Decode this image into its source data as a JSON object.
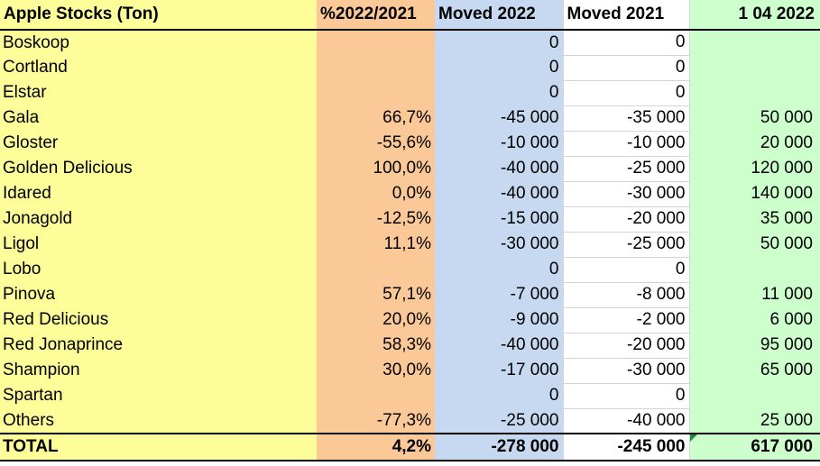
{
  "sheet": {
    "headers": {
      "name": "Apple Stocks (Ton)",
      "pct": "%2022/2021",
      "moved_2022": "Moved 2022",
      "moved_2021": "Moved 2021",
      "stock": "1 04 2022"
    },
    "rows": [
      {
        "name": "Boskoop",
        "pct": "",
        "moved_2022": "0",
        "moved_2021": "0",
        "stock": ""
      },
      {
        "name": "Cortland",
        "pct": "",
        "moved_2022": "0",
        "moved_2021": "0",
        "stock": ""
      },
      {
        "name": "Elstar",
        "pct": "",
        "moved_2022": "0",
        "moved_2021": "0",
        "stock": ""
      },
      {
        "name": "Gala",
        "pct": "66,7%",
        "moved_2022": "-45 000",
        "moved_2021": "-35 000",
        "stock": "50 000"
      },
      {
        "name": "Gloster",
        "pct": "-55,6%",
        "moved_2022": "-10 000",
        "moved_2021": "-10 000",
        "stock": "20 000"
      },
      {
        "name": "Golden Delicious",
        "pct": "100,0%",
        "moved_2022": "-40 000",
        "moved_2021": "-25 000",
        "stock": "120 000"
      },
      {
        "name": "Idared",
        "pct": "0,0%",
        "moved_2022": "-40 000",
        "moved_2021": "-30 000",
        "stock": "140 000"
      },
      {
        "name": "Jonagold",
        "pct": "-12,5%",
        "moved_2022": "-15 000",
        "moved_2021": "-20 000",
        "stock": "35 000"
      },
      {
        "name": "Ligol",
        "pct": "11,1%",
        "moved_2022": "-30 000",
        "moved_2021": "-25 000",
        "stock": "50 000"
      },
      {
        "name": "Lobo",
        "pct": "",
        "moved_2022": "0",
        "moved_2021": "0",
        "stock": ""
      },
      {
        "name": "Pinova",
        "pct": "57,1%",
        "moved_2022": "-7 000",
        "moved_2021": "-8 000",
        "stock": "11 000"
      },
      {
        "name": "Red Delicious",
        "pct": "20,0%",
        "moved_2022": "-9 000",
        "moved_2021": "-2 000",
        "stock": "6 000"
      },
      {
        "name": "Red Jonaprince",
        "pct": "58,3%",
        "moved_2022": "-40 000",
        "moved_2021": "-20 000",
        "stock": "95 000"
      },
      {
        "name": "Shampion",
        "pct": "30,0%",
        "moved_2022": "-17 000",
        "moved_2021": "-30 000",
        "stock": "65 000"
      },
      {
        "name": "Spartan",
        "pct": "",
        "moved_2022": "0",
        "moved_2021": "0",
        "stock": ""
      },
      {
        "name": "Others",
        "pct": "-77,3%",
        "moved_2022": "-25 000",
        "moved_2021": "-40 000",
        "stock": "25 000"
      }
    ],
    "total": {
      "name": "TOTAL",
      "pct": "4,2%",
      "moved_2022": "-278 000",
      "moved_2021": "-245 000",
      "stock": "617 000"
    }
  },
  "colors": {
    "name_col": "#fdfd9a",
    "pct_col": "#fbc998",
    "moved_2022_col": "#c6d9f0",
    "moved_2021_col": "#ffffff",
    "stock_col": "#ccffcc",
    "error_indicator": "#1e8e3e"
  }
}
